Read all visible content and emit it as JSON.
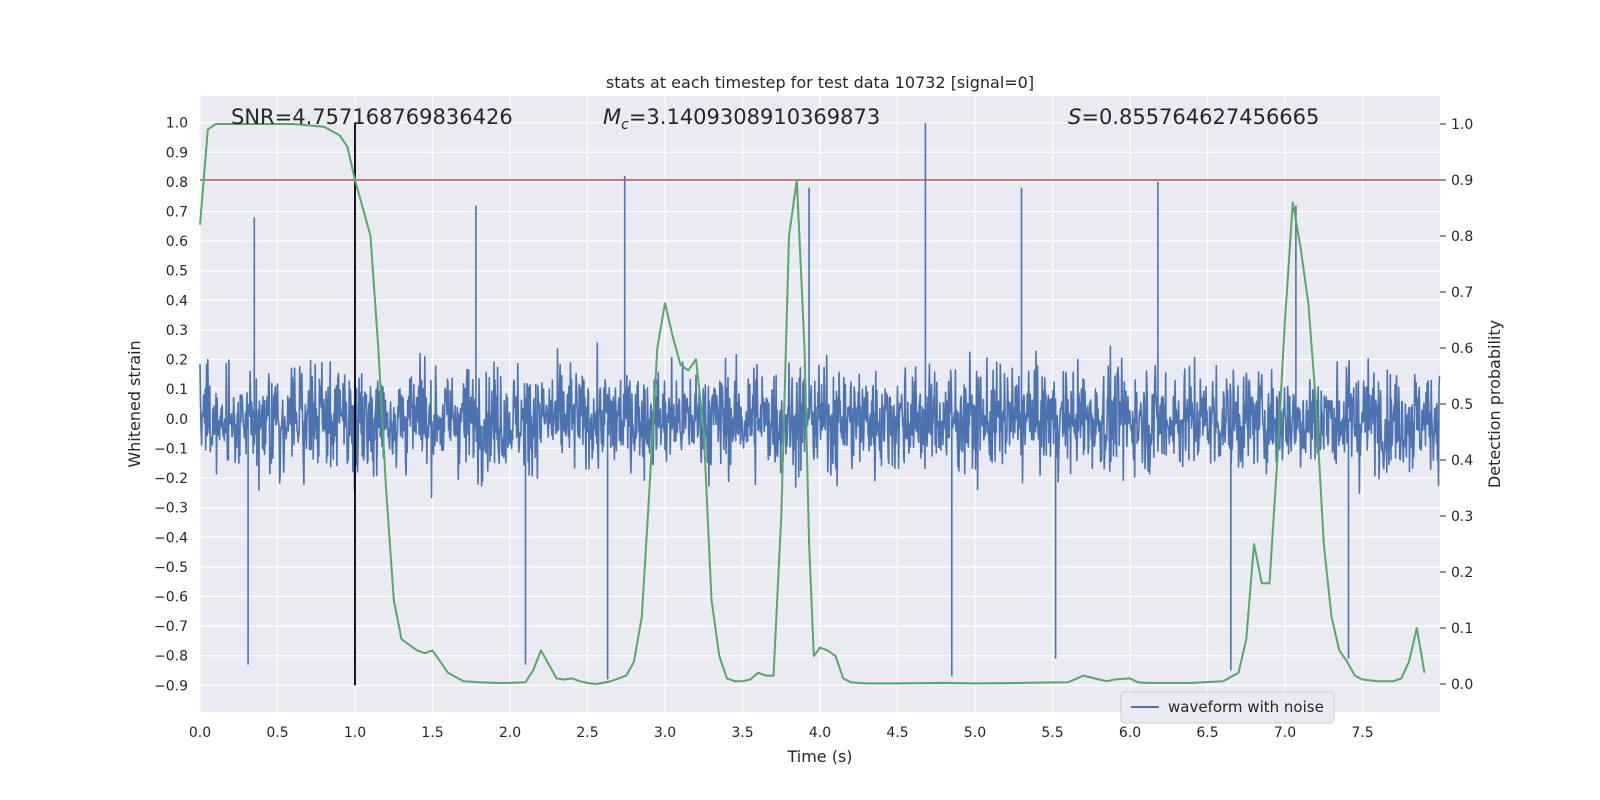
{
  "chart_data": {
    "type": "line",
    "title": "stats at each timestep for test data 10732 [signal=0]",
    "xlabel": "Time (s)",
    "ylabel_left": "Whitened strain",
    "ylabel_right": "Detection probability",
    "xlim": [
      0.0,
      8.0
    ],
    "ylim_left": [
      -0.99,
      1.09
    ],
    "ylim_right": [
      -0.05,
      1.05
    ],
    "x_ticks": [
      0.0,
      0.5,
      1.0,
      1.5,
      2.0,
      2.5,
      3.0,
      3.5,
      4.0,
      4.5,
      5.0,
      5.5,
      6.0,
      6.5,
      7.0,
      7.5
    ],
    "x_tick_labels": [
      "0.0",
      "0.5",
      "1.0",
      "1.5",
      "2.0",
      "2.5",
      "3.0",
      "3.5",
      "4.0",
      "4.5",
      "5.0",
      "5.5",
      "6.0",
      "6.5",
      "7.0",
      "7.5"
    ],
    "y_left_ticks": [
      1.0,
      0.9,
      0.8,
      0.7,
      0.6,
      0.5,
      0.4,
      0.3,
      0.2,
      0.1,
      0.0,
      -0.1,
      -0.2,
      -0.3,
      -0.4,
      -0.5,
      -0.6,
      -0.7,
      -0.8,
      -0.9
    ],
    "y_left_tick_labels": [
      "1.0",
      "0.9",
      "0.8",
      "0.7",
      "0.6",
      "0.5",
      "0.4",
      "0.3",
      "0.2",
      "0.1",
      "0.0",
      "−0.1",
      "−0.2",
      "−0.3",
      "−0.4",
      "−0.5",
      "−0.6",
      "−0.7",
      "−0.8",
      "−0.9"
    ],
    "y_right_ticks": [
      1.0,
      0.9,
      0.8,
      0.7,
      0.6,
      0.5,
      0.4,
      0.3,
      0.2,
      0.1,
      0.0
    ],
    "y_right_tick_labels": [
      "1.0",
      "0.9",
      "0.8",
      "0.7",
      "0.6",
      "0.5",
      "0.4",
      "0.3",
      "0.2",
      "0.1",
      "0.0"
    ],
    "annotations": {
      "snr": "SNR=4.757168769836426",
      "mc_symbol": "M",
      "mc_sub": "c",
      "mc_value": "=3.1409308910369873",
      "s_symbol": "S",
      "s_value": "=0.855764627456665"
    },
    "threshold_line": {
      "y": 0.9,
      "axis": "right",
      "color": "#c44e52"
    },
    "vertical_marker": {
      "x": 1.0,
      "y_range": [
        -0.9,
        1.0
      ],
      "color": "#000000"
    },
    "legend": {
      "position": "lower-right",
      "entries": [
        "waveform with noise"
      ]
    },
    "series": [
      {
        "name": "waveform with noise",
        "axis": "left",
        "color": "#4c72b0",
        "envelope_sigma": 0.17,
        "peak_spikes": [
          {
            "x": 0.35,
            "y": 0.68
          },
          {
            "x": 0.31,
            "y": -0.83
          },
          {
            "x": 2.74,
            "y": 0.82
          },
          {
            "x": 2.63,
            "y": -0.88
          },
          {
            "x": 3.93,
            "y": 0.78
          },
          {
            "x": 4.68,
            "y": 1.0
          },
          {
            "x": 4.85,
            "y": -0.87
          },
          {
            "x": 7.07,
            "y": 0.72
          },
          {
            "x": 7.41,
            "y": -0.81
          },
          {
            "x": 6.65,
            "y": -0.85
          },
          {
            "x": 1.78,
            "y": 0.72
          },
          {
            "x": 5.3,
            "y": 0.78
          },
          {
            "x": 6.18,
            "y": 0.8
          },
          {
            "x": 2.1,
            "y": -0.83
          },
          {
            "x": 5.52,
            "y": -0.81
          }
        ]
      },
      {
        "name": "detection probability",
        "axis": "right",
        "color": "#55a868",
        "x": [
          0.0,
          0.05,
          0.1,
          0.2,
          0.4,
          0.6,
          0.8,
          0.9,
          0.95,
          1.0,
          1.05,
          1.1,
          1.15,
          1.2,
          1.25,
          1.3,
          1.4,
          1.45,
          1.5,
          1.55,
          1.6,
          1.7,
          1.8,
          1.9,
          2.0,
          2.1,
          2.15,
          2.2,
          2.25,
          2.3,
          2.35,
          2.4,
          2.45,
          2.5,
          2.55,
          2.6,
          2.65,
          2.7,
          2.75,
          2.8,
          2.85,
          2.9,
          2.95,
          3.0,
          3.05,
          3.1,
          3.15,
          3.2,
          3.25,
          3.3,
          3.35,
          3.4,
          3.45,
          3.5,
          3.55,
          3.6,
          3.65,
          3.7,
          3.75,
          3.8,
          3.85,
          3.9,
          3.93,
          3.96,
          4.0,
          4.05,
          4.1,
          4.15,
          4.2,
          4.25,
          4.3,
          4.5,
          4.8,
          5.0,
          5.3,
          5.6,
          5.7,
          5.8,
          5.85,
          5.9,
          6.0,
          6.05,
          6.1,
          6.2,
          6.4,
          6.6,
          6.7,
          6.75,
          6.8,
          6.85,
          6.9,
          6.95,
          7.0,
          7.05,
          7.1,
          7.15,
          7.2,
          7.25,
          7.3,
          7.35,
          7.4,
          7.45,
          7.5,
          7.6,
          7.7,
          7.75,
          7.8,
          7.85,
          7.9
        ],
        "y": [
          0.82,
          0.99,
          1.0,
          1.0,
          1.0,
          1.0,
          0.995,
          0.98,
          0.96,
          0.9,
          0.85,
          0.8,
          0.6,
          0.35,
          0.15,
          0.08,
          0.06,
          0.055,
          0.06,
          0.04,
          0.02,
          0.005,
          0.003,
          0.002,
          0.002,
          0.003,
          0.025,
          0.06,
          0.035,
          0.01,
          0.008,
          0.01,
          0.005,
          0.002,
          0.0,
          0.002,
          0.005,
          0.01,
          0.015,
          0.04,
          0.12,
          0.35,
          0.6,
          0.68,
          0.62,
          0.57,
          0.56,
          0.58,
          0.45,
          0.15,
          0.05,
          0.01,
          0.005,
          0.005,
          0.008,
          0.02,
          0.015,
          0.015,
          0.3,
          0.8,
          0.9,
          0.6,
          0.25,
          0.05,
          0.065,
          0.06,
          0.05,
          0.01,
          0.003,
          0.002,
          0.001,
          0.001,
          0.002,
          0.001,
          0.002,
          0.003,
          0.015,
          0.008,
          0.005,
          0.008,
          0.01,
          0.003,
          0.002,
          0.002,
          0.002,
          0.005,
          0.02,
          0.08,
          0.25,
          0.18,
          0.18,
          0.4,
          0.65,
          0.86,
          0.78,
          0.68,
          0.5,
          0.25,
          0.12,
          0.06,
          0.04,
          0.015,
          0.008,
          0.005,
          0.005,
          0.01,
          0.04,
          0.1,
          0.02
        ]
      }
    ]
  }
}
